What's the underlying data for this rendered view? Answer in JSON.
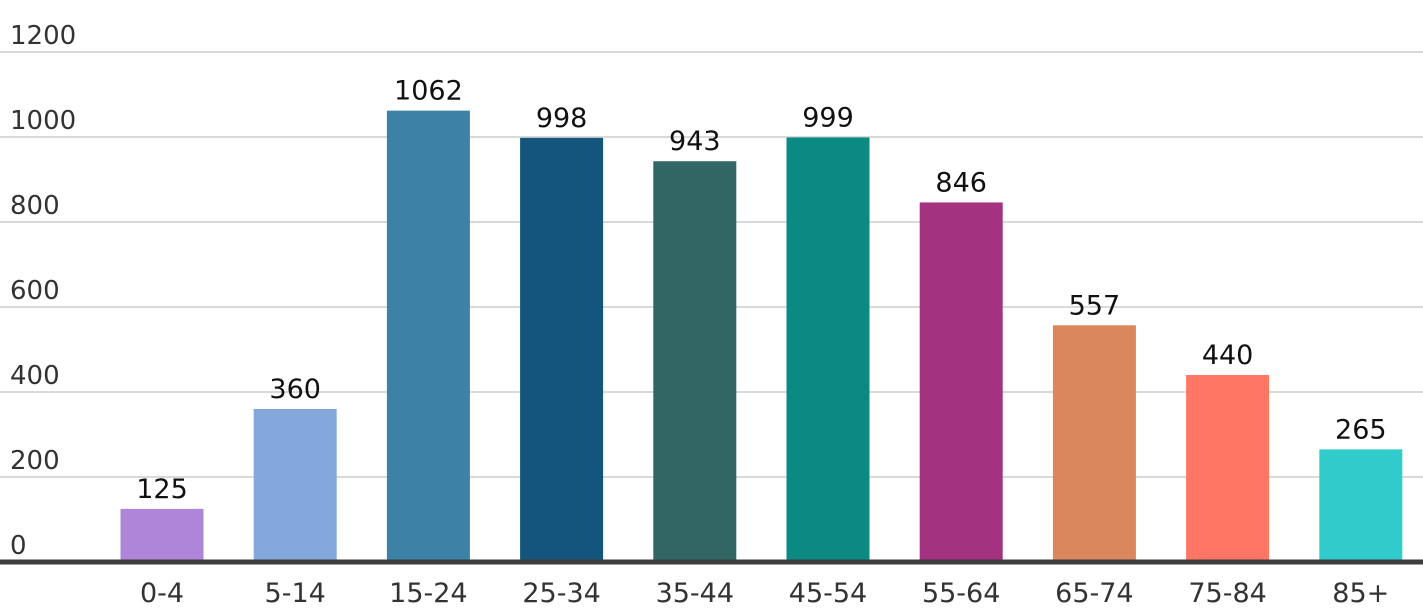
{
  "chart_data": {
    "type": "bar",
    "title": "",
    "xlabel": "",
    "ylabel": "",
    "ylim": [
      0,
      1200
    ],
    "yticks": [
      0,
      200,
      400,
      600,
      800,
      1000,
      1200
    ],
    "ytick_labels": [
      "0",
      "200",
      "400",
      "600",
      "800",
      "1000",
      "1200"
    ],
    "grid": "horizontal",
    "legend": "none",
    "categories": [
      "0-4",
      "5-14",
      "15-24",
      "25-34",
      "35-44",
      "45-54",
      "55-64",
      "65-74",
      "75-84",
      "85+"
    ],
    "values": [
      125,
      360,
      1062,
      998,
      943,
      999,
      846,
      557,
      440,
      265
    ],
    "value_labels": [
      "125",
      "360",
      "1062",
      "998",
      "943",
      "999",
      "846",
      "557",
      "440",
      "265"
    ],
    "colors": [
      "#ae85d9",
      "#84a8db",
      "#3b82a6",
      "#13557d",
      "#316665",
      "#0b8a84",
      "#a33280",
      "#da875e",
      "#ff7764",
      "#31cbcb"
    ]
  }
}
